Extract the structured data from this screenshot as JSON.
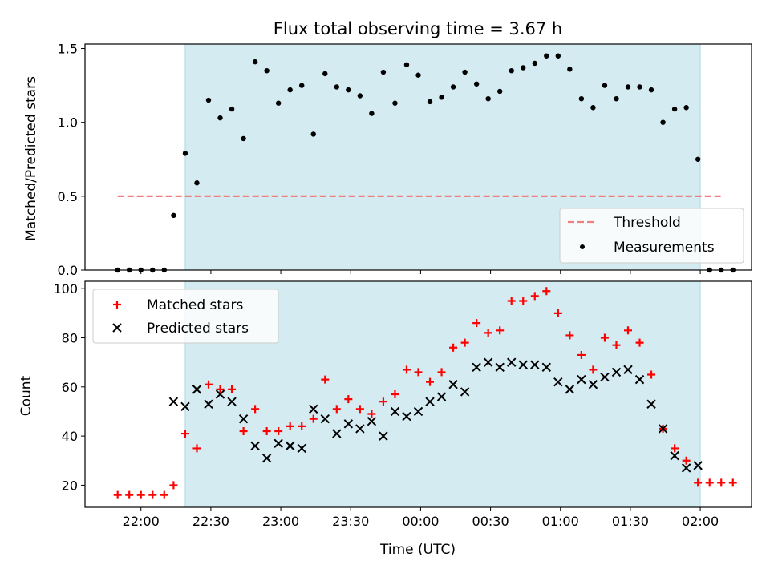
{
  "chart_data": [
    {
      "type": "scatter",
      "title": "Flux total observing time = 3.67 h",
      "ylabel": "Matched/Predicted stars",
      "xlabel": "",
      "ylim": [
        0,
        1.53
      ],
      "yticks": [
        "0.0",
        "0.5",
        "1.0",
        "1.5"
      ],
      "shaded_span": [
        "22:19",
        "02:00"
      ],
      "grid": false,
      "legend": {
        "position": "lower-right",
        "entries": [
          "Threshold",
          "Measurements"
        ]
      },
      "threshold": {
        "name": "Threshold",
        "value": 0.5,
        "x_start": "21:50",
        "x_end": "02:10",
        "color": "#f08080",
        "style": "dashed"
      },
      "series": [
        {
          "name": "Measurements",
          "color": "#000000",
          "x": [
            "21:50",
            "21:55",
            "22:00",
            "22:05",
            "22:10",
            "22:14",
            "22:19",
            "22:24",
            "22:29",
            "22:34",
            "22:39",
            "22:44",
            "22:49",
            "22:54",
            "22:59",
            "23:04",
            "23:09",
            "23:14",
            "23:19",
            "23:24",
            "23:29",
            "23:34",
            "23:39",
            "23:44",
            "23:49",
            "23:54",
            "23:59",
            "00:04",
            "00:09",
            "00:14",
            "00:19",
            "00:24",
            "00:29",
            "00:34",
            "00:39",
            "00:44",
            "00:49",
            "00:54",
            "00:59",
            "01:04",
            "01:09",
            "01:14",
            "01:19",
            "01:24",
            "01:29",
            "01:34",
            "01:39",
            "01:44",
            "01:49",
            "01:54",
            "01:59",
            "02:04",
            "02:09",
            "02:14"
          ],
          "values": [
            0.0,
            0.0,
            0.0,
            0.0,
            0.0,
            0.37,
            0.79,
            0.59,
            1.15,
            1.03,
            1.09,
            0.89,
            1.41,
            1.35,
            1.13,
            1.22,
            1.25,
            0.92,
            1.33,
            1.24,
            1.22,
            1.18,
            1.06,
            1.34,
            1.13,
            1.39,
            1.32,
            1.14,
            1.17,
            1.24,
            1.34,
            1.26,
            1.16,
            1.21,
            1.35,
            1.37,
            1.4,
            1.45,
            1.45,
            1.36,
            1.16,
            1.1,
            1.25,
            1.16,
            1.24,
            1.24,
            1.22,
            1.0,
            1.09,
            1.1,
            0.75,
            0.0,
            0.0,
            0.0
          ]
        }
      ]
    },
    {
      "type": "scatter",
      "title": "",
      "ylabel": "Count",
      "xlabel": "Time (UTC)",
      "ylim": [
        11,
        103
      ],
      "yticks": [
        "20",
        "40",
        "60",
        "80",
        "100"
      ],
      "xticks": [
        "22:00",
        "22:30",
        "23:00",
        "23:30",
        "00:00",
        "00:30",
        "01:00",
        "01:30",
        "02:00"
      ],
      "shaded_span": [
        "22:19",
        "02:00"
      ],
      "grid": false,
      "legend": {
        "position": "upper-left",
        "entries": [
          "Matched stars",
          "Predicted stars"
        ]
      },
      "series": [
        {
          "name": "Matched stars",
          "marker": "plus",
          "color": "#ff0000",
          "x": [
            "21:50",
            "21:55",
            "22:00",
            "22:05",
            "22:10",
            "22:14",
            "22:19",
            "22:24",
            "22:29",
            "22:34",
            "22:39",
            "22:44",
            "22:49",
            "22:54",
            "22:59",
            "23:04",
            "23:09",
            "23:14",
            "23:19",
            "23:24",
            "23:29",
            "23:34",
            "23:39",
            "23:44",
            "23:49",
            "23:54",
            "23:59",
            "00:04",
            "00:09",
            "00:14",
            "00:19",
            "00:24",
            "00:29",
            "00:34",
            "00:39",
            "00:44",
            "00:49",
            "00:54",
            "00:59",
            "01:04",
            "01:09",
            "01:14",
            "01:19",
            "01:24",
            "01:29",
            "01:34",
            "01:39",
            "01:44",
            "01:49",
            "01:54",
            "01:59",
            "02:04",
            "02:09",
            "02:14"
          ],
          "values": [
            16,
            16,
            16,
            16,
            16,
            20,
            41,
            35,
            61,
            59,
            59,
            42,
            51,
            42,
            42,
            44,
            44,
            47,
            63,
            51,
            55,
            51,
            49,
            54,
            57,
            67,
            66,
            62,
            66,
            76,
            78,
            86,
            82,
            83,
            95,
            95,
            97,
            99,
            90,
            81,
            73,
            67,
            80,
            77,
            83,
            78,
            65,
            43,
            35,
            30,
            21,
            21,
            21,
            21
          ]
        },
        {
          "name": "Predicted stars",
          "marker": "x",
          "color": "#000000",
          "x": [
            "22:14",
            "22:19",
            "22:24",
            "22:29",
            "22:34",
            "22:39",
            "22:44",
            "22:49",
            "22:54",
            "22:59",
            "23:04",
            "23:09",
            "23:14",
            "23:19",
            "23:24",
            "23:29",
            "23:34",
            "23:39",
            "23:44",
            "23:49",
            "23:54",
            "23:59",
            "00:04",
            "00:09",
            "00:14",
            "00:19",
            "00:24",
            "00:29",
            "00:34",
            "00:39",
            "00:44",
            "00:49",
            "00:54",
            "00:59",
            "01:04",
            "01:09",
            "01:14",
            "01:19",
            "01:24",
            "01:29",
            "01:34",
            "01:39",
            "01:44",
            "01:49",
            "01:54",
            "01:59"
          ],
          "values": [
            54,
            52,
            59,
            53,
            57,
            54,
            47,
            36,
            31,
            37,
            36,
            35,
            51,
            47,
            41,
            45,
            43,
            46,
            40,
            50,
            48,
            50,
            54,
            56,
            61,
            58,
            68,
            70,
            68,
            70,
            69,
            69,
            68,
            62,
            59,
            63,
            61,
            64,
            66,
            67,
            63,
            53,
            43,
            32,
            27,
            28
          ]
        }
      ]
    }
  ]
}
